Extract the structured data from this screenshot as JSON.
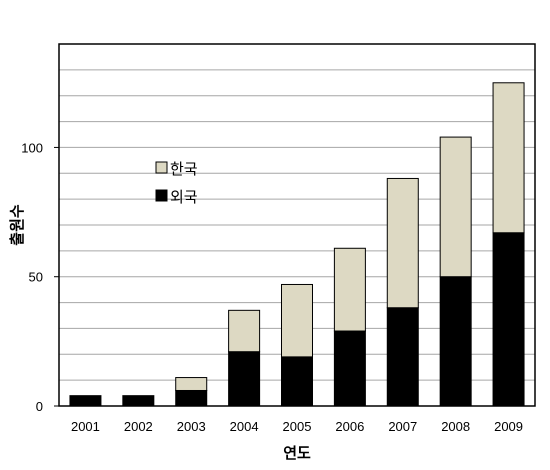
{
  "chart_data": {
    "type": "bar",
    "stacked": true,
    "categories": [
      "2001",
      "2002",
      "2003",
      "2004",
      "2005",
      "2006",
      "2007",
      "2008",
      "2009"
    ],
    "series": [
      {
        "name": "외국",
        "color": "#000000",
        "values": [
          4,
          4,
          6,
          21,
          19,
          29,
          38,
          50,
          67
        ]
      },
      {
        "name": "한국",
        "color": "#ddd9c3",
        "values": [
          0,
          0,
          5,
          16,
          28,
          32,
          50,
          54,
          58
        ]
      }
    ],
    "xlabel": "연도",
    "ylabel": "출원수",
    "ylim": [
      0,
      140
    ],
    "yticks": [
      0,
      50,
      100
    ],
    "grid": true,
    "legend": "upper-left, inside plot",
    "legend_entries": [
      "한국",
      "외국"
    ]
  }
}
